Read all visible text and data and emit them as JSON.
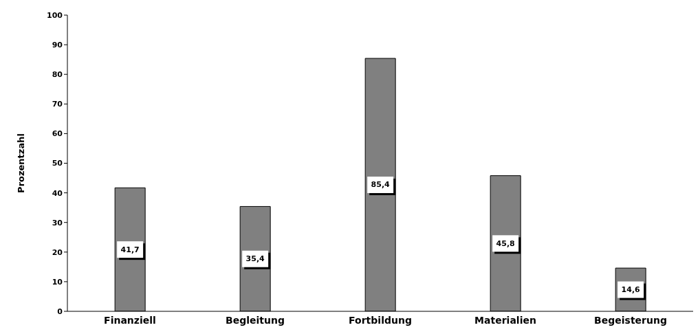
{
  "chart_data": {
    "type": "bar",
    "ylabel": "Prozentzahl",
    "categories": [
      "Finanziell",
      "Begleitung",
      "Fortbildung",
      "Materialien",
      "Begeisterung"
    ],
    "values": [
      41.7,
      35.4,
      85.4,
      45.8,
      14.6
    ],
    "value_labels": [
      "41,7",
      "35,4",
      "85,4",
      "45,8",
      "14,6"
    ],
    "color": "#808080",
    "ylim": [
      0,
      100
    ],
    "yticks": [
      0,
      10,
      20,
      30,
      40,
      50,
      60,
      70,
      80,
      90,
      100
    ],
    "grid": false,
    "legend": false
  }
}
